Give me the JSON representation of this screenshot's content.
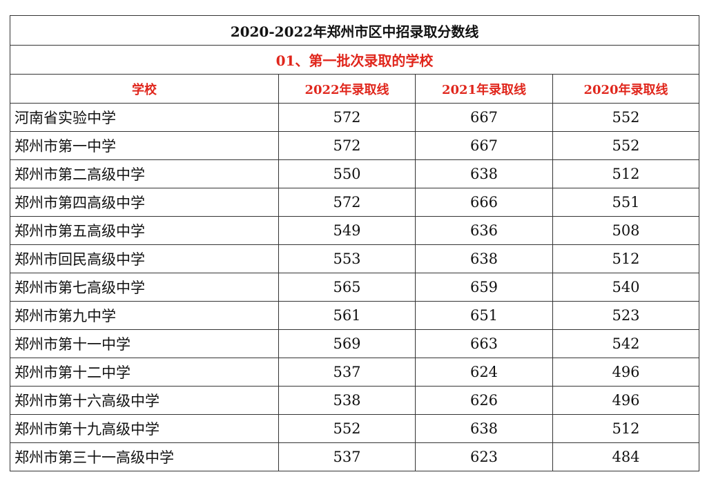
{
  "title": "2020-2022年郑州市区中招录取分数线",
  "subtitle": "01、第一批次录取的学校",
  "table": {
    "header": [
      "学校",
      "2022年录取线",
      "2021年录取线",
      "2020年录取线"
    ],
    "rows": [
      [
        "河南省实验中学",
        572,
        667,
        552
      ],
      [
        "郑州市第一中学",
        572,
        667,
        552
      ],
      [
        "郑州市第二高级中学",
        550,
        638,
        512
      ],
      [
        "郑州市第四高级中学",
        572,
        666,
        551
      ],
      [
        "郑州市第五高级中学",
        549,
        636,
        508
      ],
      [
        "郑州市回民高级中学",
        553,
        638,
        512
      ],
      [
        "郑州市第七高级中学",
        565,
        659,
        540
      ],
      [
        "郑州市第九中学",
        561,
        651,
        523
      ],
      [
        "郑州市第十一中学",
        569,
        663,
        542
      ],
      [
        "郑州市第十二中学",
        537,
        624,
        496
      ],
      [
        "郑州市第十六高级中学",
        538,
        626,
        496
      ],
      [
        "郑州市第十九高级中学",
        552,
        638,
        512
      ],
      [
        "郑州市第三十一高级中学",
        537,
        623,
        484
      ]
    ]
  }
}
